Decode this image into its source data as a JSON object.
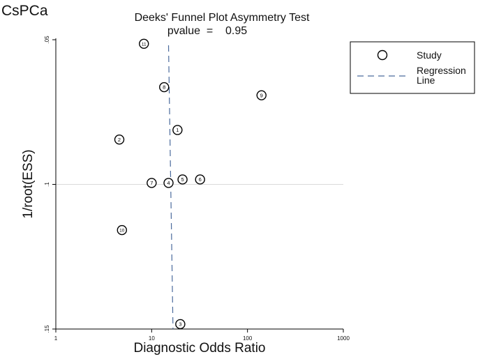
{
  "panel_label": "CsPCa",
  "chart_data": {
    "type": "scatter",
    "title": "Deeks' Funnel Plot Asymmetry Test",
    "subtitle": "pvalue  =    0.95",
    "xlabel": "Diagnostic Odds Ratio",
    "ylabel": "1/root(ESS)",
    "x_scale": "log",
    "xlim": [
      1,
      1000
    ],
    "ylim": [
      0.05,
      0.15
    ],
    "y_inverted": true,
    "x_ticks": [
      "1",
      "10",
      "100",
      "1000"
    ],
    "y_ticks": [
      ".05",
      ".1",
      ".15"
    ],
    "grid": "horizontal",
    "legend_position": "right",
    "legend": [
      {
        "label": "Study",
        "symbol": "hollow-circle"
      },
      {
        "label": "Regression\nLine",
        "symbol": "dashed-line"
      }
    ],
    "series": [
      {
        "name": "Study",
        "points": [
          {
            "label": "1",
            "x": 18.6,
            "y": 0.0812
          },
          {
            "label": "2",
            "x": 4.6,
            "y": 0.0845
          },
          {
            "label": "3",
            "x": 19.9,
            "y": 0.1483
          },
          {
            "label": "4",
            "x": 15.0,
            "y": 0.0995
          },
          {
            "label": "5",
            "x": 21.0,
            "y": 0.0983
          },
          {
            "label": "6",
            "x": 32.0,
            "y": 0.0983
          },
          {
            "label": "7",
            "x": 10.0,
            "y": 0.0995
          },
          {
            "label": "8",
            "x": 13.5,
            "y": 0.0664
          },
          {
            "label": "9",
            "x": 140.0,
            "y": 0.0692
          },
          {
            "label": "10",
            "x": 4.9,
            "y": 0.1158
          },
          {
            "label": "11",
            "x": 8.3,
            "y": 0.0514
          }
        ]
      }
    ],
    "regression_line": {
      "x_at_ylim_low": 15.0,
      "x_at_ylim_high": 16.7
    },
    "colors": {
      "regression": "#4a6a9c",
      "grid": "#dadada",
      "axis": "#000000",
      "marker": "#000000"
    }
  }
}
